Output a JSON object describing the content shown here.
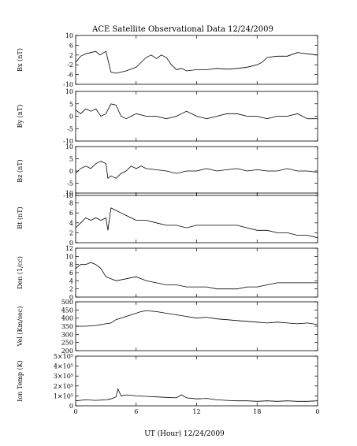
{
  "figure": {
    "title": "ACE Satellite Observational Data   12/24/2009",
    "xlabel": "UT (Hour)  12/24/2009",
    "xticks": [
      "0",
      "6",
      "12",
      "18",
      "0"
    ]
  },
  "chart_data": [
    {
      "type": "line",
      "ylabel": "Bx (nT)",
      "ylim": [
        -10,
        10
      ],
      "yticks": [
        "10",
        "6",
        "2",
        "-2",
        "-6",
        "-10"
      ],
      "series": [
        {
          "x": [
            0,
            0.5,
            1,
            1.5,
            2,
            2.4,
            2.8,
            3.0,
            3.5,
            4,
            5,
            6,
            6.5,
            7,
            7.5,
            8,
            8.5,
            9,
            9.5,
            10,
            10.5,
            11,
            12,
            13,
            14,
            15,
            16,
            17,
            18,
            18.5,
            19,
            20,
            21,
            22,
            23,
            24
          ],
          "y": [
            -1,
            1.5,
            2.5,
            3,
            3.5,
            2,
            3,
            3.5,
            -5,
            -5.5,
            -4.5,
            -3,
            -1,
            1,
            2,
            0.5,
            2,
            1,
            -2,
            -4,
            -3.5,
            -4.5,
            -4,
            -4,
            -3.5,
            -3.8,
            -3.5,
            -3,
            -2,
            -1,
            1,
            1.5,
            1.5,
            3,
            2.5,
            2
          ]
        }
      ]
    },
    {
      "type": "line",
      "ylabel": "By (nT)",
      "ylim": [
        -10,
        10
      ],
      "yticks": [
        "10",
        "5",
        "0",
        "-5",
        "-10"
      ],
      "series": [
        {
          "x": [
            0,
            0.5,
            1,
            1.5,
            2,
            2.5,
            3,
            3.5,
            4,
            4.5,
            5,
            5.5,
            6,
            7,
            8,
            9,
            10,
            10.5,
            11,
            12,
            13,
            14,
            15,
            16,
            17,
            18,
            19,
            20,
            21,
            22,
            23,
            24
          ],
          "y": [
            2.5,
            1,
            3,
            2,
            3,
            0,
            1,
            5,
            4.5,
            0,
            -1,
            0,
            1,
            0,
            0,
            -1,
            0,
            1,
            2,
            0,
            -1,
            0,
            1,
            1,
            0,
            0,
            -1,
            0,
            0,
            1,
            -1,
            -1
          ]
        }
      ]
    },
    {
      "type": "line",
      "ylabel": "Bz (nT)",
      "ylim": [
        -10,
        10
      ],
      "yticks": [
        "10",
        "5",
        "0",
        "-5",
        "-10"
      ],
      "series": [
        {
          "x": [
            0,
            0.5,
            1,
            1.5,
            2,
            2.5,
            3,
            3.2,
            3.5,
            4,
            4.5,
            5,
            5.5,
            6,
            6.5,
            7,
            8,
            9,
            10,
            11,
            12,
            13,
            14,
            15,
            16,
            17,
            18,
            19,
            20,
            21,
            22,
            23,
            24
          ],
          "y": [
            -1,
            1,
            2,
            1,
            3,
            4,
            3,
            -3,
            -2,
            -3,
            -1,
            0,
            2,
            1,
            2,
            1,
            0.5,
            0,
            -1,
            0,
            0,
            1,
            0,
            0.5,
            1,
            0,
            0.5,
            0,
            0,
            1,
            0,
            0,
            -0.5
          ]
        }
      ]
    },
    {
      "type": "line",
      "ylabel": "Bt (nT)",
      "ylim": [
        0,
        10
      ],
      "yticks": [
        "10",
        "8",
        "6",
        "4",
        "2",
        "0"
      ],
      "series": [
        {
          "x": [
            0,
            0.5,
            1,
            1.5,
            2,
            2.5,
            3,
            3.2,
            3.5,
            4,
            4.5,
            5,
            5.5,
            6,
            7,
            8,
            9,
            10,
            11,
            12,
            13,
            14,
            15,
            16,
            17,
            18,
            19,
            20,
            21,
            22,
            23,
            24
          ],
          "y": [
            3,
            4,
            5,
            4.5,
            5,
            4.5,
            5,
            2.5,
            7,
            6.5,
            6,
            5.5,
            5,
            4.5,
            4.5,
            4,
            3.5,
            3.5,
            3,
            3.5,
            3.5,
            3.5,
            3.5,
            3.5,
            3,
            2.5,
            2.5,
            2,
            2,
            1.5,
            1.5,
            1
          ]
        }
      ]
    },
    {
      "type": "line",
      "ylabel": "Den (1/cc)",
      "ylim": [
        0,
        12
      ],
      "yticks": [
        "12",
        "10",
        "8",
        "6",
        "4",
        "2",
        "0"
      ],
      "series": [
        {
          "x": [
            0,
            0.5,
            1,
            1.5,
            2,
            2.5,
            3,
            3.5,
            4,
            5,
            6,
            7,
            8,
            9,
            10,
            11,
            12,
            13,
            14,
            15,
            16,
            17,
            18,
            19,
            20,
            21,
            22,
            23,
            24
          ],
          "y": [
            7,
            8,
            8,
            8.5,
            8,
            7,
            5,
            4.5,
            4,
            4.5,
            5,
            4,
            3.5,
            3,
            3,
            2.5,
            2.5,
            2.5,
            2,
            2,
            2,
            2.5,
            2.5,
            3,
            3.5,
            3.5,
            3.5,
            3.5,
            3.5
          ]
        }
      ]
    },
    {
      "type": "line",
      "ylabel": "Vel (Km/sec)",
      "ylim": [
        200,
        500
      ],
      "yticks": [
        "500",
        "450",
        "400",
        "350",
        "300",
        "250",
        "200"
      ],
      "series": [
        {
          "x": [
            0,
            1,
            2,
            3,
            3.5,
            4,
            5,
            6,
            6.5,
            7,
            8,
            9,
            10,
            11,
            12,
            13,
            14,
            15,
            16,
            17,
            18,
            19,
            20,
            21,
            22,
            23,
            24
          ],
          "y": [
            350,
            350,
            355,
            365,
            370,
            390,
            410,
            430,
            440,
            445,
            440,
            430,
            420,
            410,
            400,
            405,
            395,
            390,
            385,
            380,
            375,
            370,
            375,
            370,
            365,
            370,
            360
          ]
        }
      ]
    },
    {
      "type": "line",
      "ylabel": "Ion Temp (K)",
      "ylim": [
        0,
        500000
      ],
      "yticks": [
        "5×10⁵",
        "4×10⁵",
        "3×10⁵",
        "2×10⁵",
        "1×10⁵",
        "0"
      ],
      "series": [
        {
          "x": [
            0,
            1,
            2,
            3,
            3.5,
            4,
            4.2,
            4.5,
            5,
            6,
            7,
            8,
            9,
            10,
            10.5,
            11,
            12,
            13,
            14,
            15,
            16,
            17,
            18,
            19,
            20,
            21,
            22,
            23,
            24
          ],
          "y": [
            50000,
            60000,
            55000,
            60000,
            70000,
            90000,
            170000,
            100000,
            110000,
            100000,
            95000,
            90000,
            85000,
            80000,
            110000,
            80000,
            70000,
            75000,
            60000,
            55000,
            50000,
            50000,
            45000,
            50000,
            45000,
            50000,
            45000,
            45000,
            50000
          ]
        }
      ]
    }
  ]
}
